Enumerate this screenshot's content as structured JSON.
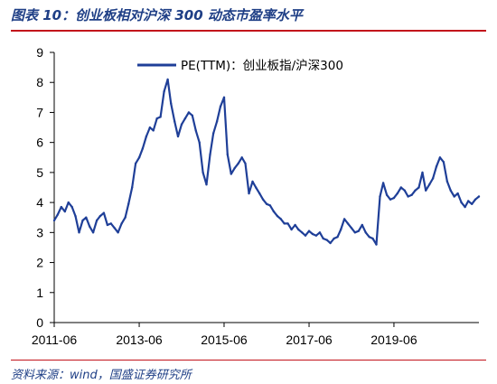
{
  "title": "图表 10：创业板相对沪深 300 动态市盈率水平",
  "source": "资料来源：wind，国盛证券研究所",
  "colors": {
    "line": "#1f3f98",
    "title": "#1f3f86",
    "rule": "#c3131b"
  },
  "chart_data": {
    "type": "line",
    "title": "",
    "xlabel": "",
    "ylabel": "",
    "ylim": [
      0,
      9
    ],
    "yticks": [
      0,
      1,
      2,
      3,
      4,
      5,
      6,
      7,
      8,
      9
    ],
    "xlim": [
      "2011-06-01",
      "2021-06-01"
    ],
    "xticks": [
      {
        "date": "2011-06-01",
        "label": "2011-06"
      },
      {
        "date": "2013-06-01",
        "label": "2013-06"
      },
      {
        "date": "2015-06-01",
        "label": "2015-06"
      },
      {
        "date": "2017-06-01",
        "label": "2017-06"
      },
      {
        "date": "2019-06-01",
        "label": "2019-06"
      }
    ],
    "legend": {
      "position": "top-center"
    },
    "grid": false,
    "series": [
      {
        "name": "PE(TTM)：创业板指/沪深300",
        "points": [
          [
            "2011-06-01",
            3.4
          ],
          [
            "2011-07-01",
            3.6
          ],
          [
            "2011-08-01",
            3.85
          ],
          [
            "2011-09-01",
            3.7
          ],
          [
            "2011-10-01",
            4.0
          ],
          [
            "2011-11-01",
            3.85
          ],
          [
            "2011-12-01",
            3.55
          ],
          [
            "2012-01-01",
            3.0
          ],
          [
            "2012-02-01",
            3.4
          ],
          [
            "2012-03-01",
            3.5
          ],
          [
            "2012-04-01",
            3.2
          ],
          [
            "2012-05-01",
            3.0
          ],
          [
            "2012-06-01",
            3.4
          ],
          [
            "2012-07-01",
            3.55
          ],
          [
            "2012-08-01",
            3.65
          ],
          [
            "2012-09-01",
            3.25
          ],
          [
            "2012-10-01",
            3.3
          ],
          [
            "2012-11-01",
            3.15
          ],
          [
            "2012-12-01",
            3.0
          ],
          [
            "2013-01-01",
            3.3
          ],
          [
            "2013-02-01",
            3.5
          ],
          [
            "2013-03-01",
            3.95
          ],
          [
            "2013-04-01",
            4.5
          ],
          [
            "2013-05-01",
            5.3
          ],
          [
            "2013-06-01",
            5.5
          ],
          [
            "2013-07-01",
            5.8
          ],
          [
            "2013-08-01",
            6.2
          ],
          [
            "2013-09-01",
            6.5
          ],
          [
            "2013-10-01",
            6.4
          ],
          [
            "2013-11-01",
            6.8
          ],
          [
            "2013-12-01",
            6.85
          ],
          [
            "2014-01-01",
            7.7
          ],
          [
            "2014-02-01",
            8.1
          ],
          [
            "2014-03-01",
            7.3
          ],
          [
            "2014-04-01",
            6.7
          ],
          [
            "2014-05-01",
            6.2
          ],
          [
            "2014-06-01",
            6.6
          ],
          [
            "2014-07-01",
            6.8
          ],
          [
            "2014-08-01",
            7.0
          ],
          [
            "2014-09-01",
            6.9
          ],
          [
            "2014-10-01",
            6.4
          ],
          [
            "2014-11-01",
            6.0
          ],
          [
            "2014-12-01",
            5.0
          ],
          [
            "2015-01-01",
            4.6
          ],
          [
            "2015-02-01",
            5.6
          ],
          [
            "2015-03-01",
            6.3
          ],
          [
            "2015-04-01",
            6.7
          ],
          [
            "2015-05-01",
            7.2
          ],
          [
            "2015-06-01",
            7.5
          ],
          [
            "2015-07-01",
            5.6
          ],
          [
            "2015-08-01",
            4.95
          ],
          [
            "2015-09-01",
            5.15
          ],
          [
            "2015-10-01",
            5.3
          ],
          [
            "2015-11-01",
            5.5
          ],
          [
            "2015-12-01",
            5.3
          ],
          [
            "2016-01-01",
            4.3
          ],
          [
            "2016-02-01",
            4.7
          ],
          [
            "2016-03-01",
            4.5
          ],
          [
            "2016-04-01",
            4.3
          ],
          [
            "2016-05-01",
            4.1
          ],
          [
            "2016-06-01",
            3.95
          ],
          [
            "2016-07-01",
            3.9
          ],
          [
            "2016-08-01",
            3.7
          ],
          [
            "2016-09-01",
            3.55
          ],
          [
            "2016-10-01",
            3.45
          ],
          [
            "2016-11-01",
            3.3
          ],
          [
            "2016-12-01",
            3.3
          ],
          [
            "2017-01-01",
            3.1
          ],
          [
            "2017-02-01",
            3.25
          ],
          [
            "2017-03-01",
            3.1
          ],
          [
            "2017-04-01",
            3.0
          ],
          [
            "2017-05-01",
            2.9
          ],
          [
            "2017-06-01",
            3.05
          ],
          [
            "2017-07-01",
            2.95
          ],
          [
            "2017-08-01",
            2.9
          ],
          [
            "2017-09-01",
            3.0
          ],
          [
            "2017-10-01",
            2.8
          ],
          [
            "2017-11-01",
            2.75
          ],
          [
            "2017-12-01",
            2.65
          ],
          [
            "2018-01-01",
            2.8
          ],
          [
            "2018-02-01",
            2.85
          ],
          [
            "2018-03-01",
            3.1
          ],
          [
            "2018-04-01",
            3.45
          ],
          [
            "2018-05-01",
            3.3
          ],
          [
            "2018-06-01",
            3.15
          ],
          [
            "2018-07-01",
            3.0
          ],
          [
            "2018-08-01",
            3.05
          ],
          [
            "2018-09-01",
            3.25
          ],
          [
            "2018-10-01",
            3.0
          ],
          [
            "2018-11-01",
            2.85
          ],
          [
            "2018-12-01",
            2.8
          ],
          [
            "2019-01-01",
            2.6
          ],
          [
            "2019-02-01",
            4.2
          ],
          [
            "2019-03-01",
            4.65
          ],
          [
            "2019-04-01",
            4.25
          ],
          [
            "2019-05-01",
            4.1
          ],
          [
            "2019-06-01",
            4.15
          ],
          [
            "2019-07-01",
            4.3
          ],
          [
            "2019-08-01",
            4.5
          ],
          [
            "2019-09-01",
            4.4
          ],
          [
            "2019-10-01",
            4.2
          ],
          [
            "2019-11-01",
            4.25
          ],
          [
            "2019-12-01",
            4.4
          ],
          [
            "2020-01-01",
            4.5
          ],
          [
            "2020-02-01",
            5.0
          ],
          [
            "2020-03-01",
            4.4
          ],
          [
            "2020-04-01",
            4.6
          ],
          [
            "2020-05-01",
            4.8
          ],
          [
            "2020-06-01",
            5.2
          ],
          [
            "2020-07-01",
            5.5
          ],
          [
            "2020-08-01",
            5.35
          ],
          [
            "2020-09-01",
            4.7
          ],
          [
            "2020-10-01",
            4.4
          ],
          [
            "2020-11-01",
            4.2
          ],
          [
            "2020-12-01",
            4.3
          ],
          [
            "2021-01-01",
            4.0
          ],
          [
            "2021-02-01",
            3.85
          ],
          [
            "2021-03-01",
            4.05
          ],
          [
            "2021-04-01",
            3.95
          ],
          [
            "2021-05-01",
            4.1
          ],
          [
            "2021-06-01",
            4.2
          ]
        ]
      }
    ]
  }
}
